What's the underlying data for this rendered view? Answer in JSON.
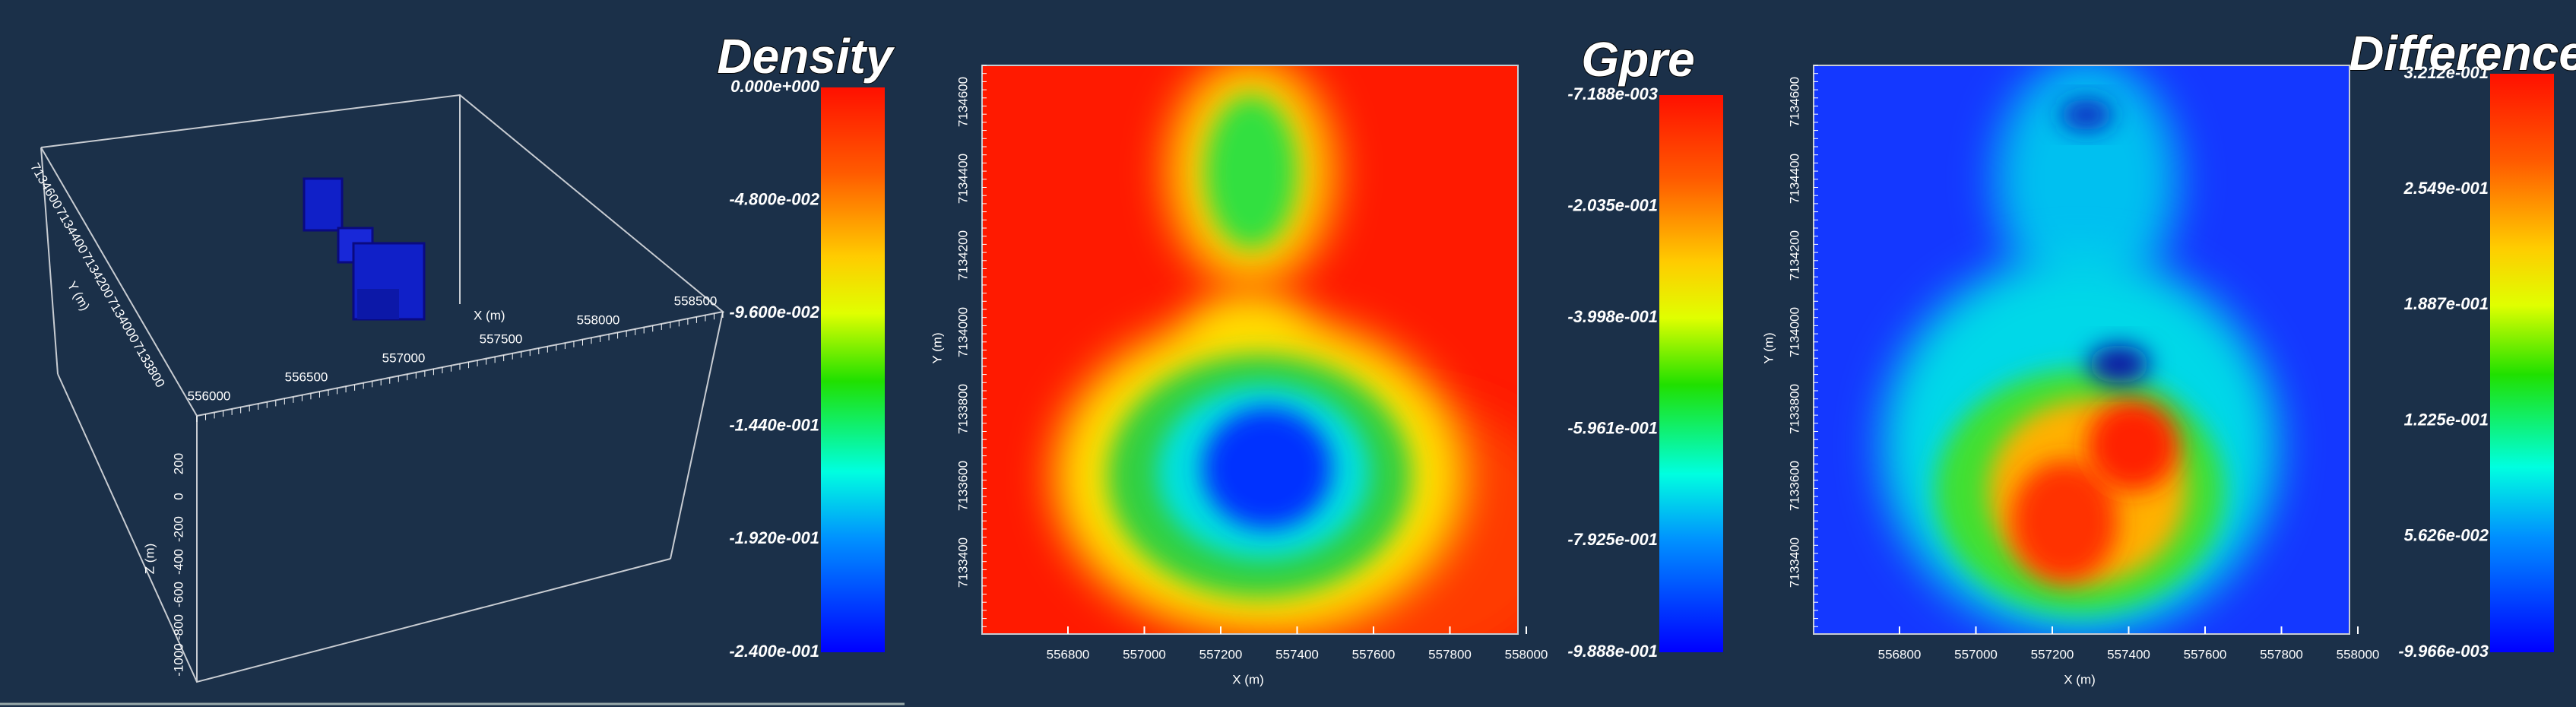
{
  "panels": [
    {
      "title": "Density",
      "colorbar_labels": [
        "0.000e+000",
        "-4.800e-002",
        "-9.600e-002",
        "-1.440e-001",
        "-1.920e-001",
        "-2.400e-001"
      ],
      "x_axis_title": "X (m)",
      "x_ticks": [
        "556000",
        "556500",
        "557000",
        "557500",
        "558000",
        "558500"
      ],
      "y_axis_title": "Y (m)",
      "y_ticks": [
        "7134600",
        "7134400",
        "7134200",
        "7134000",
        "7133800"
      ],
      "z_axis_title": "Z (m)",
      "z_ticks": [
        "200",
        "0",
        "-200",
        "-400",
        "-600",
        "-800",
        "-1000"
      ]
    },
    {
      "title": "Gpre",
      "colorbar_labels": [
        "-7.188e-003",
        "-2.035e-001",
        "-3.998e-001",
        "-5.961e-001",
        "-7.925e-001",
        "-9.888e-001"
      ],
      "x_axis_title": "X (m)",
      "x_ticks": [
        "556800",
        "557000",
        "557200",
        "557400",
        "557600",
        "557800",
        "558000"
      ],
      "y_axis_title": "Y (m)",
      "y_ticks": [
        "7134600",
        "7134400",
        "7134200",
        "7134000",
        "7133800",
        "7133600",
        "7133400"
      ]
    },
    {
      "title": "Difference",
      "colorbar_labels": [
        "3.212e-001",
        "2.549e-001",
        "1.887e-001",
        "1.225e-001",
        "5.626e-002",
        "-9.966e-003"
      ],
      "x_axis_title": "X (m)",
      "x_ticks": [
        "556800",
        "557000",
        "557200",
        "557400",
        "557600",
        "557800",
        "558000"
      ],
      "y_axis_title": "Y (m)",
      "y_ticks": [
        "7134600",
        "7134400",
        "7134200",
        "7134000",
        "7133800",
        "7133600",
        "7133400"
      ]
    }
  ]
}
